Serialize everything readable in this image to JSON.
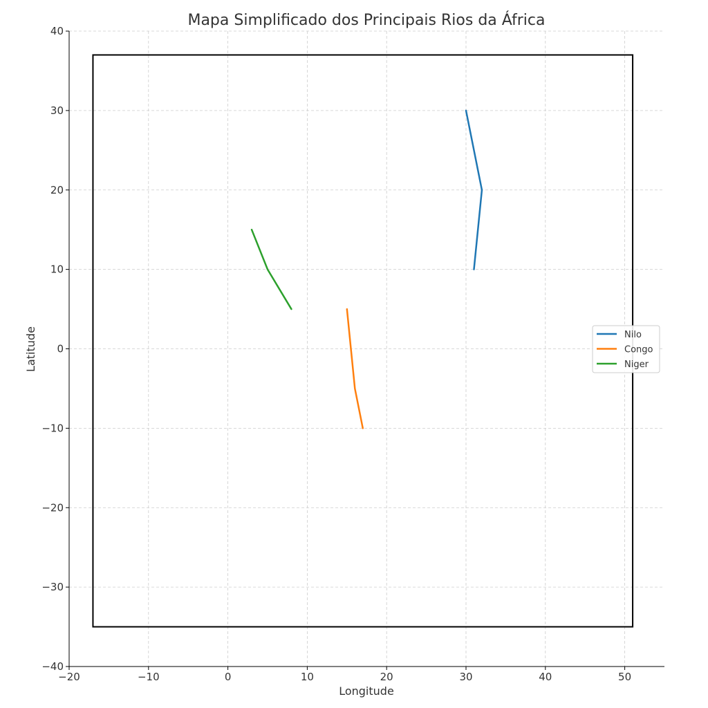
{
  "chart_data": {
    "type": "line",
    "title": "Mapa Simplificado dos Principais Rios da África",
    "xlabel": "Longitude",
    "ylabel": "Latitude",
    "xlim": [
      -20,
      55
    ],
    "ylim": [
      -40,
      40
    ],
    "xticks": [
      -20,
      -10,
      0,
      10,
      20,
      30,
      40,
      50
    ],
    "yticks": [
      -40,
      -30,
      -20,
      -10,
      0,
      10,
      20,
      30,
      40
    ],
    "xtick_labels": [
      "−20",
      "−10",
      "0",
      "10",
      "20",
      "30",
      "40",
      "50"
    ],
    "ytick_labels": [
      "−40",
      "−30",
      "−20",
      "−10",
      "0",
      "10",
      "20",
      "30",
      "40"
    ],
    "grid": true,
    "legend": "center-right",
    "boundary_box": {
      "x": [
        -17,
        51
      ],
      "y": [
        -35,
        37
      ],
      "color": "#000000"
    },
    "series": [
      {
        "name": "Nilo",
        "color": "#1f77b4",
        "x": [
          30,
          32,
          31
        ],
        "y": [
          30,
          20,
          10
        ]
      },
      {
        "name": "Congo",
        "color": "#ff7f0e",
        "x": [
          15,
          16,
          17
        ],
        "y": [
          5,
          -5,
          -10
        ]
      },
      {
        "name": "Niger",
        "color": "#2ca02c",
        "x": [
          3,
          5,
          8
        ],
        "y": [
          15,
          10,
          5
        ]
      }
    ]
  }
}
